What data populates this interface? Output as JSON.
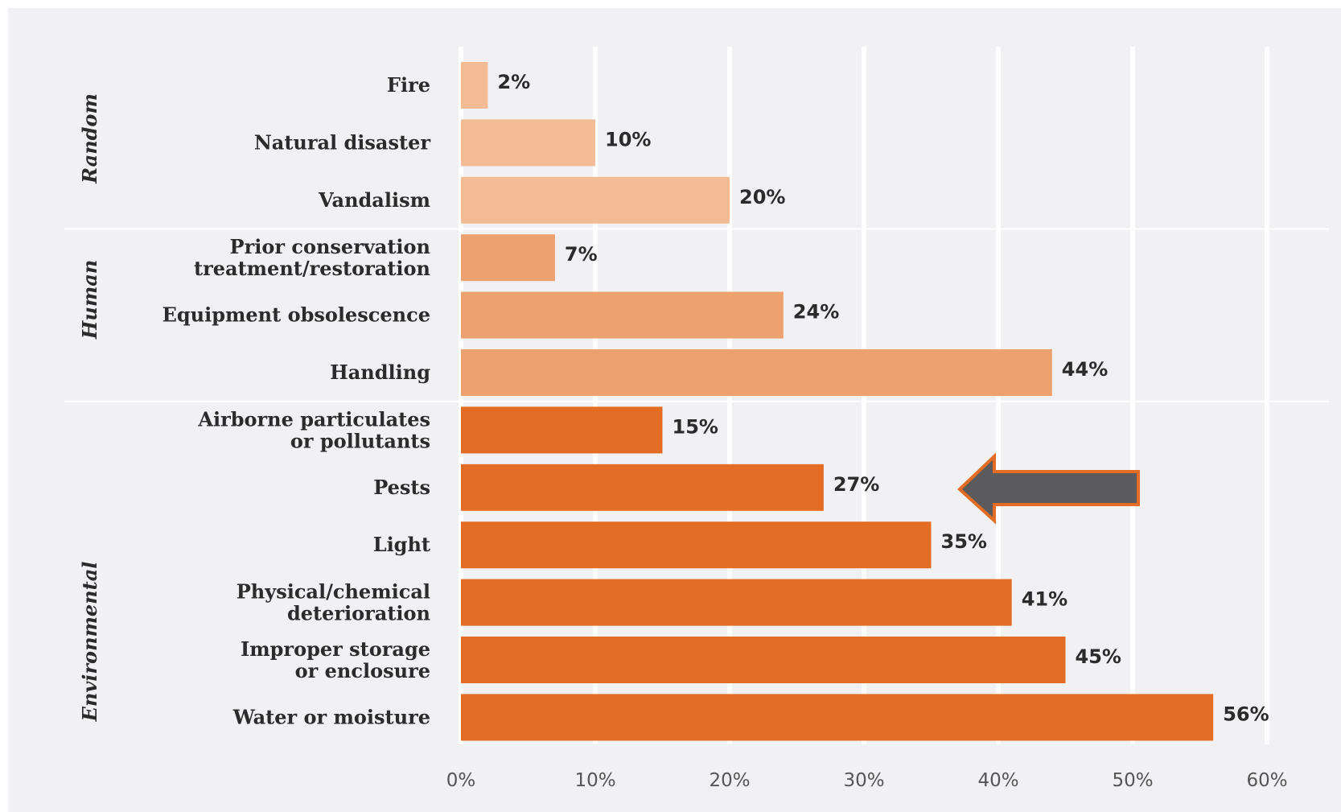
{
  "chart_data": {
    "type": "bar",
    "orientation": "horizontal",
    "title": "",
    "xlabel": "",
    "ylabel": "",
    "xlim": [
      0,
      60
    ],
    "x_ticks": [
      "0%",
      "10%",
      "20%",
      "30%",
      "40%",
      "50%",
      "60%"
    ],
    "grid": "vertical",
    "groups": [
      {
        "name": "Random",
        "color": "#f3bc95",
        "categories": [
          {
            "label": [
              "Fire"
            ],
            "value": 2,
            "value_label": "2%"
          },
          {
            "label": [
              "Natural disaster"
            ],
            "value": 10,
            "value_label": "10%"
          },
          {
            "label": [
              "Vandalism"
            ],
            "value": 20,
            "value_label": "20%"
          }
        ]
      },
      {
        "name": "Human",
        "color": "#eda16e",
        "categories": [
          {
            "label": [
              "Prior conservation",
              "treatment/restoration"
            ],
            "value": 7,
            "value_label": "7%"
          },
          {
            "label": [
              "Equipment obsolescence"
            ],
            "value": 24,
            "value_label": "24%"
          },
          {
            "label": [
              "Handling"
            ],
            "value": 44,
            "value_label": "44%"
          }
        ]
      },
      {
        "name": "Environmental",
        "color": "#e36d25",
        "categories": [
          {
            "label": [
              "Airborne particulates",
              "or pollutants"
            ],
            "value": 15,
            "value_label": "15%"
          },
          {
            "label": [
              "Pests"
            ],
            "value": 27,
            "value_label": "27%"
          },
          {
            "label": [
              "Light"
            ],
            "value": 35,
            "value_label": "35%"
          },
          {
            "label": [
              "Physical/chemical",
              "deterioration"
            ],
            "value": 41,
            "value_label": "41%"
          },
          {
            "label": [
              "Improper storage",
              "or enclosure"
            ],
            "value": 45,
            "value_label": "45%"
          },
          {
            "label": [
              "Water or moisture"
            ],
            "value": 56,
            "value_label": "56%"
          }
        ]
      }
    ],
    "annotation": {
      "type": "arrow",
      "points_to": "Pests",
      "fill": "#5b5b5d",
      "stroke": "#e36d25"
    }
  }
}
